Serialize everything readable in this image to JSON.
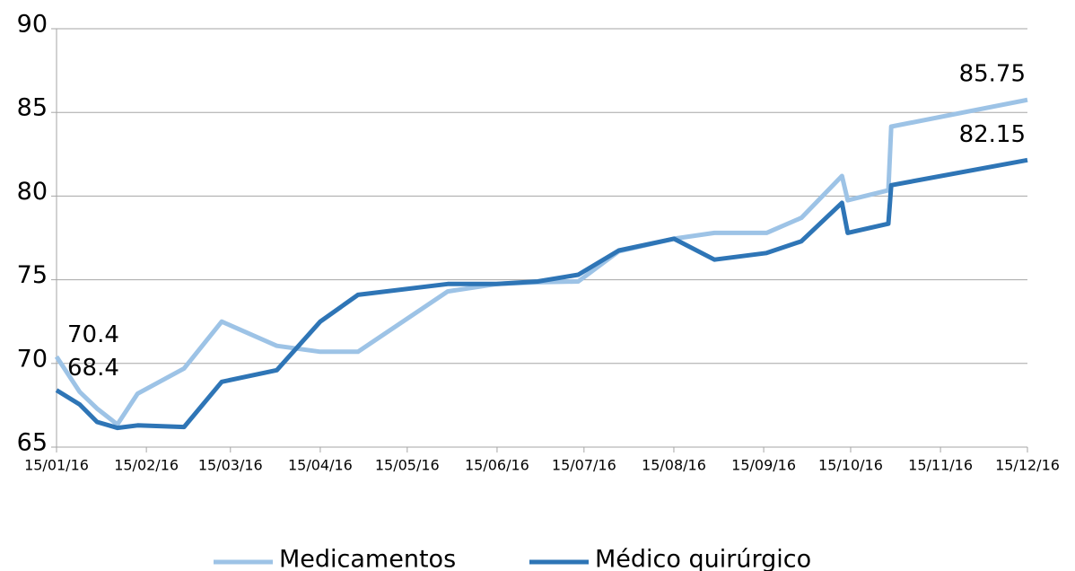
{
  "chart_data": {
    "type": "line",
    "x": [
      "15/01/16",
      "23/01/16",
      "29/01/16",
      "05/02/16",
      "12/02/16",
      "28/02/16",
      "12/03/16",
      "31/03/16",
      "15/04/16",
      "28/04/16",
      "29/05/16",
      "15/06/16",
      "29/06/16",
      "13/07/16",
      "27/07/16",
      "15/08/16",
      "29/08/16",
      "16/09/16",
      "28/09/16",
      "12/10/16",
      "14/10/16",
      "28/10/16",
      "29/10/16",
      "15/12/16"
    ],
    "series": [
      {
        "name": "Medicamentos",
        "color": "#9dc3e6",
        "values": [
          70.4,
          68.3,
          67.3,
          66.35,
          68.2,
          69.7,
          72.5,
          71.05,
          70.7,
          70.7,
          74.3,
          74.75,
          74.85,
          74.9,
          76.7,
          77.45,
          77.8,
          77.8,
          78.7,
          81.2,
          79.75,
          80.35,
          84.15,
          85.75
        ]
      },
      {
        "name": "Médico quirúrgico",
        "color": "#2e75b6",
        "values": [
          68.4,
          67.55,
          66.5,
          66.15,
          66.3,
          66.2,
          68.9,
          69.6,
          72.5,
          74.1,
          74.75,
          74.75,
          74.9,
          75.3,
          76.75,
          77.45,
          76.2,
          76.6,
          77.3,
          79.6,
          77.8,
          78.35,
          80.65,
          82.15
        ]
      }
    ],
    "data_labels": "first-last",
    "xlim": [
      "15/01/16",
      "15/12/16"
    ],
    "xticks": [
      "15/01/16",
      "15/02/16",
      "15/03/16",
      "15/04/16",
      "15/05/16",
      "15/06/16",
      "15/07/16",
      "15/08/16",
      "15/09/16",
      "15/10/16",
      "15/11/16",
      "15/12/16"
    ],
    "ylim": [
      65,
      90
    ],
    "yticks": [
      65,
      70,
      75,
      80,
      85,
      90
    ],
    "grid": true,
    "legend": "bottom"
  }
}
